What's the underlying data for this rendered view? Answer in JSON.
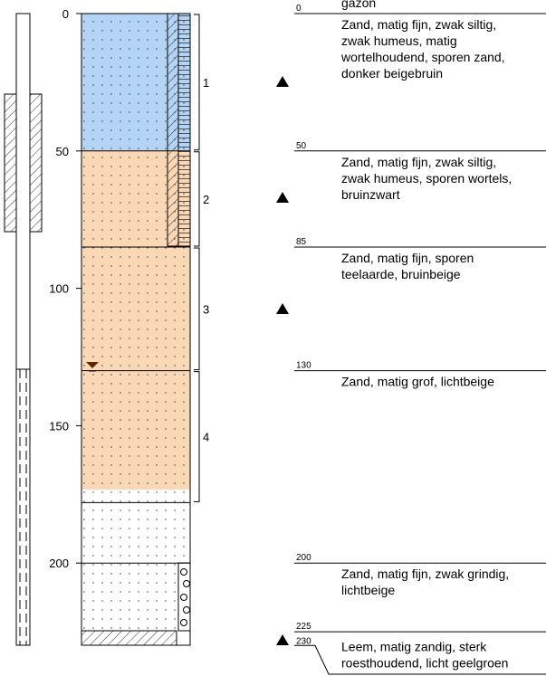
{
  "surface": "gazon",
  "depth_ticks": [
    0,
    50,
    100,
    150,
    200
  ],
  "layers": [
    {
      "depth": 0,
      "description": [
        "Zand, matig fijn, zwak siltig,",
        "zwak humeus, matig",
        "wortelhoudend, sporen zand,",
        "donker beigebruin"
      ]
    },
    {
      "depth": 50,
      "description": [
        "Zand, matig fijn, zwak siltig,",
        "zwak humeus, sporen wortels,",
        "bruinzwart"
      ]
    },
    {
      "depth": 85,
      "description": [
        "Zand, matig fijn, sporen",
        "teelaarde, bruinbeige"
      ]
    },
    {
      "depth": 130,
      "description": [
        "Zand, matig grof, lichtbeige"
      ]
    },
    {
      "depth": 200,
      "description": [
        "Zand, matig fijn, zwak grindig,",
        "lichtbeige"
      ]
    },
    {
      "depth": 225,
      "description": []
    },
    {
      "depth": 230,
      "description": [
        "Leem, matig zandig, sterk",
        "roesthoudend, licht geelgroen"
      ]
    }
  ],
  "samples": [
    {
      "label": "1",
      "top": 0,
      "bottom": 50
    },
    {
      "label": "2",
      "top": 50,
      "bottom": 85
    },
    {
      "label": "3",
      "top": 85,
      "bottom": 130
    },
    {
      "label": "4",
      "top": 130,
      "bottom": 178
    }
  ]
}
